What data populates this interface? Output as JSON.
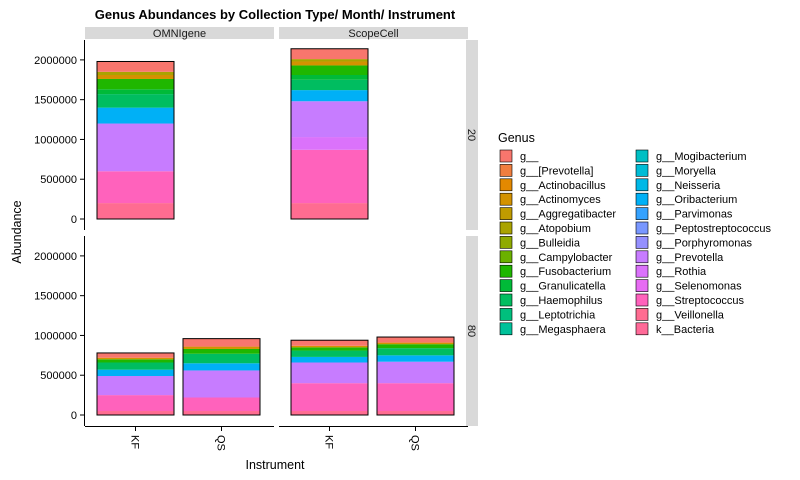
{
  "chart_data": {
    "type": "stacked-bar",
    "title": "Genus Abundances by Collection Type/ Month/ Instrument",
    "xlabel": "Instrument",
    "ylabel": "Abundance",
    "ylim": [
      0,
      2250000
    ],
    "y_ticks": [
      0,
      500000,
      1000000,
      1500000,
      2000000
    ],
    "y_tick_labels": [
      "0",
      "500000",
      "1000000",
      "1500000",
      "2000000"
    ],
    "categories": [
      "KF",
      "QS"
    ],
    "column_facets": [
      "OMNIgene",
      "ScopeCell"
    ],
    "row_facets": [
      "20",
      "80"
    ],
    "legend_title": "Genus",
    "genera": [
      {
        "name": "g__",
        "color": "#F8766D"
      },
      {
        "name": "g__[Prevotella]",
        "color": "#F07E3F"
      },
      {
        "name": "g__Actinobacillus",
        "color": "#E38900"
      },
      {
        "name": "g__Actinomyces",
        "color": "#D39200"
      },
      {
        "name": "g__Aggregatibacter",
        "color": "#C09B00"
      },
      {
        "name": "g__Atopobium",
        "color": "#AAA300"
      },
      {
        "name": "g__Bulleidia",
        "color": "#8FAA00"
      },
      {
        "name": "g__Campylobacter",
        "color": "#6BB100"
      },
      {
        "name": "g__Fusobacterium",
        "color": "#1FB700"
      },
      {
        "name": "g__Granulicatella",
        "color": "#00BA38"
      },
      {
        "name": "g__Haemophilus",
        "color": "#00BD60"
      },
      {
        "name": "g__Leptotrichia",
        "color": "#00BF7D"
      },
      {
        "name": "g__Megasphaera",
        "color": "#00C19A"
      },
      {
        "name": "g__Mogibacterium",
        "color": "#00BFC4"
      },
      {
        "name": "g__Moryella",
        "color": "#00BCD6"
      },
      {
        "name": "g__Neisseria",
        "color": "#00B8E7"
      },
      {
        "name": "g__Oribacterium",
        "color": "#00B0F6"
      },
      {
        "name": "g__Parvimonas",
        "color": "#35A2FF"
      },
      {
        "name": "g__Peptostreptococcus",
        "color": "#7997FF"
      },
      {
        "name": "g__Porphyromonas",
        "color": "#9590FF"
      },
      {
        "name": "g__Prevotella",
        "color": "#C77CFF"
      },
      {
        "name": "g__Rothia",
        "color": "#DB72FB"
      },
      {
        "name": "g__Selenomonas",
        "color": "#E76BF3"
      },
      {
        "name": "g__Streptococcus",
        "color": "#FF62BC"
      },
      {
        "name": "g__Veillonella",
        "color": "#FF6C91"
      },
      {
        "name": "k__Bacteria",
        "color": "#FF6A98"
      }
    ],
    "bars": [
      {
        "column": "OMNIgene",
        "row": "20",
        "instrument": "KF",
        "segments": [
          [
            "g__Veillonella",
            200000
          ],
          [
            "g__Streptococcus",
            400000
          ],
          [
            "g__Prevotella",
            600000
          ],
          [
            "g__Oribacterium",
            200000
          ],
          [
            "g__Haemophilus",
            170000
          ],
          [
            "g__Granulicatella",
            60000
          ],
          [
            "g__Fusobacterium",
            130000
          ],
          [
            "g__Actinomyces",
            50000
          ],
          [
            "g__Atopobium",
            40000
          ],
          [
            "g__",
            130000
          ]
        ]
      },
      {
        "column": "ScopeCell",
        "row": "20",
        "instrument": "KF",
        "segments": [
          [
            "g__Veillonella",
            200000
          ],
          [
            "g__Streptococcus",
            670000
          ],
          [
            "g__Rothia",
            160000
          ],
          [
            "g__Prevotella",
            450000
          ],
          [
            "g__Oribacterium",
            140000
          ],
          [
            "g__Haemophilus",
            130000
          ],
          [
            "g__Granulicatella",
            60000
          ],
          [
            "g__Fusobacterium",
            120000
          ],
          [
            "g__Actinomyces",
            50000
          ],
          [
            "g__Atopobium",
            30000
          ],
          [
            "g__",
            130000
          ]
        ]
      },
      {
        "column": "OMNIgene",
        "row": "80",
        "instrument": "KF",
        "segments": [
          [
            "g__Veillonella",
            50000
          ],
          [
            "g__Streptococcus",
            200000
          ],
          [
            "g__Prevotella",
            240000
          ],
          [
            "g__Oribacterium",
            80000
          ],
          [
            "g__Haemophilus",
            90000
          ],
          [
            "g__Fusobacterium",
            40000
          ],
          [
            "g__Actinomyces",
            20000
          ],
          [
            "g__",
            60000
          ]
        ]
      },
      {
        "column": "OMNIgene",
        "row": "80",
        "instrument": "QS",
        "segments": [
          [
            "g__Veillonella",
            50000
          ],
          [
            "g__Streptococcus",
            170000
          ],
          [
            "g__Prevotella",
            340000
          ],
          [
            "g__Oribacterium",
            90000
          ],
          [
            "g__Haemophilus",
            120000
          ],
          [
            "g__Fusobacterium",
            60000
          ],
          [
            "g__Actinomyces",
            30000
          ],
          [
            "g__",
            100000
          ]
        ]
      },
      {
        "column": "ScopeCell",
        "row": "80",
        "instrument": "KF",
        "segments": [
          [
            "g__Veillonella",
            50000
          ],
          [
            "g__Streptococcus",
            350000
          ],
          [
            "g__Prevotella",
            260000
          ],
          [
            "g__Oribacterium",
            70000
          ],
          [
            "g__Haemophilus",
            80000
          ],
          [
            "g__Fusobacterium",
            40000
          ],
          [
            "g__Actinomyces",
            20000
          ],
          [
            "g__",
            70000
          ]
        ]
      },
      {
        "column": "ScopeCell",
        "row": "80",
        "instrument": "QS",
        "segments": [
          [
            "g__Veillonella",
            50000
          ],
          [
            "g__Streptococcus",
            350000
          ],
          [
            "g__Prevotella",
            270000
          ],
          [
            "g__Oribacterium",
            80000
          ],
          [
            "g__Haemophilus",
            90000
          ],
          [
            "g__Fusobacterium",
            50000
          ],
          [
            "g__Actinomyces",
            20000
          ],
          [
            "g__",
            70000
          ]
        ]
      }
    ]
  }
}
